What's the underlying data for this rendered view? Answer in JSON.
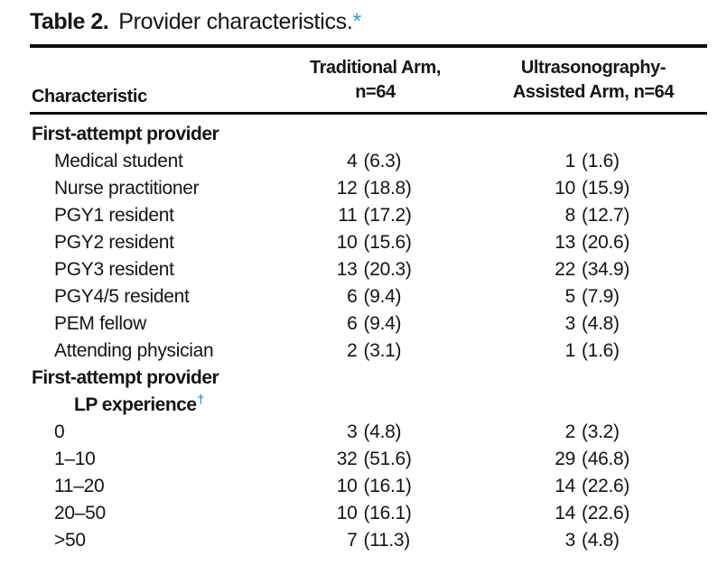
{
  "colors": {
    "accent": "#2d9cc6",
    "text": "#151515",
    "rule": "#0d0d0d"
  },
  "title": {
    "label": "Table 2.",
    "text": "Provider characteristics.",
    "footnote_marker": "*"
  },
  "table": {
    "columns": {
      "characteristic": "Characteristic",
      "traditional_line1": "Traditional Arm,",
      "traditional_line2": "n=64",
      "ultrasound_line1": "Ultrasonography-",
      "ultrasound_line2": "Assisted Arm, n=64"
    },
    "rows": [
      {
        "kind": "section",
        "label": "First-attempt provider"
      },
      {
        "kind": "item",
        "label": "Medical student",
        "tn": "4",
        "tp": "(6.3)",
        "un": "1",
        "up": "(1.6)"
      },
      {
        "kind": "item",
        "label": "Nurse practitioner",
        "tn": "12",
        "tp": "(18.8)",
        "un": "10",
        "up": "(15.9)"
      },
      {
        "kind": "item",
        "label": "PGY1 resident",
        "tn": "11",
        "tp": "(17.2)",
        "un": "8",
        "up": "(12.7)"
      },
      {
        "kind": "item",
        "label": "PGY2 resident",
        "tn": "10",
        "tp": "(15.6)",
        "un": "13",
        "up": "(20.6)"
      },
      {
        "kind": "item",
        "label": "PGY3 resident",
        "tn": "13",
        "tp": "(20.3)",
        "un": "22",
        "up": "(34.9)"
      },
      {
        "kind": "item",
        "label": "PGY4/5 resident",
        "tn": "6",
        "tp": "(9.4)",
        "un": "5",
        "up": "(7.9)"
      },
      {
        "kind": "item",
        "label": "PEM fellow",
        "tn": "6",
        "tp": "(9.4)",
        "un": "3",
        "up": "(4.8)"
      },
      {
        "kind": "item",
        "label": "Attending physician",
        "tn": "2",
        "tp": "(3.1)",
        "un": "1",
        "up": "(1.6)"
      },
      {
        "kind": "section2",
        "line1": "First-attempt provider",
        "line2": "LP experience",
        "marker": "†"
      },
      {
        "kind": "item",
        "label": "0",
        "tn": "3",
        "tp": "(4.8)",
        "un": "2",
        "up": "(3.2)"
      },
      {
        "kind": "item",
        "label": "1–10",
        "tn": "32",
        "tp": "(51.6)",
        "un": "29",
        "up": "(46.8)"
      },
      {
        "kind": "item",
        "label": "11–20",
        "tn": "10",
        "tp": "(16.1)",
        "un": "14",
        "up": "(22.6)"
      },
      {
        "kind": "item",
        "label": "20–50",
        "tn": "10",
        "tp": "(16.1)",
        "un": "14",
        "up": "(22.6)"
      },
      {
        "kind": "item",
        "label": ">50",
        "tn": "7",
        "tp": "(11.3)",
        "un": "3",
        "up": "(4.8)"
      }
    ]
  }
}
